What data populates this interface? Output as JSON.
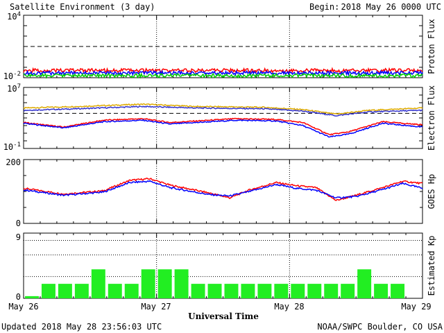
{
  "header": {
    "title": "Satellite Environment (3 day)",
    "begin_label": "Begin:",
    "begin_value": "2018 May 26 0000 UTC"
  },
  "footer": {
    "updated": "Updated 2018 May 28 23:56:03 UTC",
    "credit": "NOAA/SWPC Boulder, CO USA"
  },
  "x_axis": {
    "label": "Universal Time",
    "ticks": [
      "May 26",
      "May 27",
      "May 28",
      "May 29"
    ]
  },
  "chart_data": [
    {
      "type": "line",
      "ylabel": "Proton Flux",
      "scale": "log",
      "ylim_exp": [
        -2,
        4
      ],
      "tick_labels": [
        {
          "base": "10",
          "exp": "4"
        },
        {
          "base": "10",
          "exp": "-2"
        }
      ],
      "threshold": {
        "value_exp": 1,
        "style": "dashed"
      },
      "series": [
        {
          "color": "#ff0000",
          "level_exp": -1.3
        },
        {
          "color": "#0000ff",
          "level_exp": -1.55
        },
        {
          "color": "#00cc00",
          "level_exp": -1.8
        }
      ]
    },
    {
      "type": "line",
      "ylabel": "Electron Flux",
      "scale": "log",
      "ylim_exp": [
        -1,
        7
      ],
      "tick_labels": [
        {
          "base": "10",
          "exp": "7"
        },
        {
          "base": "10",
          "exp": "-1"
        }
      ],
      "threshold": {
        "value_exp": 3.6,
        "style": "dashed"
      },
      "series": [
        {
          "color": "#ddaa00",
          "x_days": [
            0,
            0.4,
            0.9,
            1.3,
            1.8,
            2.1,
            2.35,
            2.6,
            3.0
          ],
          "y_exp": [
            4.3,
            4.5,
            4.8,
            4.5,
            4.4,
            4.1,
            3.5,
            4.0,
            4.3
          ]
        },
        {
          "color": "#3333cc",
          "x_days": [
            0,
            0.4,
            0.9,
            1.3,
            1.8,
            2.1,
            2.35,
            2.6,
            3.0
          ],
          "y_exp": [
            4.0,
            4.2,
            4.5,
            4.3,
            4.2,
            3.9,
            3.3,
            3.8,
            4.0
          ]
        },
        {
          "color": "#ff0000",
          "x_days": [
            0,
            0.3,
            0.6,
            0.9,
            1.1,
            1.3,
            1.6,
            1.9,
            2.1,
            2.3,
            2.45,
            2.7,
            3.0
          ],
          "y_exp": [
            2.4,
            1.8,
            2.7,
            2.9,
            2.4,
            2.6,
            2.9,
            2.8,
            2.4,
            0.8,
            1.2,
            2.5,
            2.1
          ]
        },
        {
          "color": "#0000ff",
          "x_days": [
            0,
            0.3,
            0.6,
            0.9,
            1.1,
            1.3,
            1.6,
            1.9,
            2.1,
            2.3,
            2.45,
            2.7,
            3.0
          ],
          "y_exp": [
            2.3,
            1.7,
            2.5,
            2.7,
            2.2,
            2.4,
            2.7,
            2.6,
            2.0,
            0.5,
            0.9,
            2.3,
            1.8
          ]
        }
      ]
    },
    {
      "type": "line",
      "ylabel": "GOES Hp",
      "scale": "linear",
      "ylim": [
        0,
        200
      ],
      "tick_labels": [
        "200",
        "0"
      ],
      "series": [
        {
          "color": "#ff0000",
          "x_days": [
            0,
            0.3,
            0.6,
            0.8,
            0.95,
            1.1,
            1.4,
            1.55,
            1.7,
            1.9,
            2.05,
            2.2,
            2.35,
            2.5,
            2.7,
            2.85,
            3.0
          ],
          "y": [
            110,
            92,
            102,
            135,
            140,
            120,
            95,
            80,
            105,
            128,
            118,
            112,
            72,
            88,
            112,
            132,
            125
          ]
        },
        {
          "color": "#0000ff",
          "x_days": [
            0,
            0.3,
            0.6,
            0.8,
            0.95,
            1.1,
            1.4,
            1.55,
            1.7,
            1.9,
            2.05,
            2.2,
            2.35,
            2.5,
            2.7,
            2.85,
            3.0
          ],
          "y": [
            105,
            88,
            98,
            128,
            132,
            112,
            90,
            86,
            100,
            122,
            110,
            104,
            80,
            84,
            106,
            125,
            110
          ]
        }
      ]
    },
    {
      "type": "bar",
      "ylabel": "Estimated Kp",
      "ylim": [
        0,
        9
      ],
      "tick_labels": [
        "9",
        "0"
      ],
      "bar_color": "#22ee22",
      "values": [
        0.3,
        2,
        2,
        2,
        4,
        2,
        2,
        4,
        4,
        4,
        2,
        2,
        2,
        2,
        2,
        2,
        2,
        2,
        2,
        2,
        4,
        2,
        2
      ]
    }
  ]
}
